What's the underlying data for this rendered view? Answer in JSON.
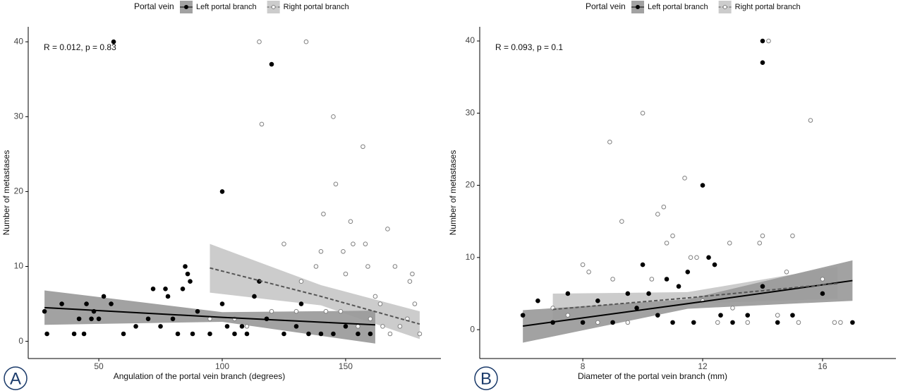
{
  "chart_data": [
    {
      "type": "scatter",
      "panel": "A",
      "legend_title": "Portal vein",
      "annotation": "R = 0.012, p = 0.83",
      "x_label": "Angulation of the portal vein branch (degrees)",
      "y_label": "Number of metastases",
      "xlim": [
        21.4,
        188.6
      ],
      "ylim": [
        -2.3,
        42
      ],
      "xticks": [
        50,
        100,
        150
      ],
      "yticks": [
        0,
        10,
        20,
        30,
        40
      ],
      "series": [
        {
          "name": "Left portal branch",
          "color": "#000000",
          "marker": "filled",
          "x": [
            28,
            29,
            35,
            40,
            42,
            44,
            45,
            47,
            48,
            50,
            52,
            55,
            56,
            60,
            65,
            70,
            72,
            75,
            77,
            78,
            80,
            82,
            84,
            85,
            86,
            87,
            88,
            90,
            95,
            100,
            100,
            102,
            105,
            108,
            110,
            113,
            115,
            120,
            118,
            125,
            130,
            132,
            135,
            140,
            145,
            150,
            155,
            160
          ],
          "values": [
            4,
            1,
            5,
            1,
            3,
            1,
            5,
            3,
            4,
            3,
            6,
            5,
            40,
            1,
            2,
            3,
            7,
            2,
            7,
            6,
            3,
            1,
            7,
            10,
            9,
            8,
            1,
            4,
            1,
            20,
            5,
            2,
            1,
            2,
            1,
            6,
            8,
            37,
            3,
            1,
            2,
            5,
            1,
            1,
            1,
            2,
            1,
            1
          ],
          "fit": {
            "x": [
              28,
              100,
              162
            ],
            "values": [
              4.5,
              3.2,
              2.2
            ],
            "lower": [
              2.2,
              2.6,
              -0.3
            ],
            "upper": [
              6.8,
              3.9,
              4.1
            ]
          }
        },
        {
          "name": "Right portal branch",
          "color": "#808080",
          "marker": "open",
          "x": [
            95,
            105,
            110,
            115,
            116,
            120,
            125,
            130,
            132,
            134,
            138,
            140,
            141,
            142,
            145,
            146,
            148,
            149,
            150,
            152,
            153,
            155,
            157,
            158,
            159,
            160,
            162,
            164,
            165,
            167,
            170,
            172,
            175,
            176,
            177,
            178,
            180,
            168
          ],
          "values": [
            3,
            3,
            2,
            40,
            29,
            4,
            13,
            4,
            8,
            40,
            10,
            12,
            17,
            4,
            30,
            21,
            4,
            12,
            9,
            16,
            13,
            2,
            26,
            13,
            10,
            3,
            6,
            5,
            2,
            15,
            10,
            2,
            3,
            8,
            9,
            5,
            1,
            1
          ],
          "fit": {
            "x": [
              95,
              140,
              180
            ],
            "values": [
              9.8,
              6.0,
              2.3
            ],
            "lower": [
              6.5,
              4.8,
              0.3
            ],
            "upper": [
              13,
              7.5,
              4
            ]
          }
        }
      ]
    },
    {
      "type": "scatter",
      "panel": "B",
      "legend_title": "Portal vein",
      "annotation": "R = 0.093, p = 0.1",
      "x_label": "Diameter of the portal vein branch (mm)",
      "y_label": "Number of metastases",
      "xlim": [
        4.56,
        18.45
      ],
      "ylim": [
        -4,
        41.96
      ],
      "xticks": [
        8,
        12,
        16
      ],
      "yticks": [
        0,
        10,
        20,
        30,
        40
      ],
      "series": [
        {
          "name": "Left portal branch",
          "color": "#000000",
          "marker": "filled",
          "x": [
            6,
            6.5,
            7,
            7.5,
            8,
            8.5,
            9,
            9.5,
            9.8,
            10,
            10.2,
            10.5,
            10.8,
            11,
            11.2,
            11.5,
            11.7,
            12,
            12.2,
            12.4,
            12.6,
            13,
            13.5,
            14,
            14,
            14,
            14.5,
            15,
            16,
            17
          ],
          "values": [
            2,
            4,
            1,
            5,
            1,
            4,
            1,
            5,
            3,
            9,
            5,
            2,
            7,
            1,
            6,
            8,
            1,
            20,
            10,
            9,
            2,
            1,
            2,
            40,
            37,
            6,
            1,
            2,
            5,
            1
          ],
          "fit": {
            "x": [
              6,
              11.5,
              17
            ],
            "values": [
              0.5,
              3.6,
              6.8
            ],
            "lower": [
              -1.8,
              2.9,
              4
            ],
            "upper": [
              2.7,
              4.2,
              9.6
            ]
          }
        },
        {
          "name": "Right portal branch",
          "color": "#808080",
          "marker": "open",
          "x": [
            7,
            7.5,
            8,
            8.2,
            8.5,
            8.9,
            9,
            9.3,
            9.5,
            10,
            10.3,
            10.5,
            10.7,
            10.8,
            11,
            11.4,
            11.6,
            11.8,
            12,
            12.5,
            12.9,
            13,
            13.5,
            13.9,
            14,
            14.2,
            14.5,
            14.8,
            15,
            15.2,
            15.6,
            16,
            16.4,
            16.6
          ],
          "values": [
            3,
            2,
            9,
            8,
            1,
            26,
            7,
            15,
            1,
            30,
            7,
            16,
            17,
            12,
            13,
            21,
            10,
            10,
            4,
            1,
            12,
            3,
            1,
            12,
            13,
            40,
            2,
            8,
            13,
            1,
            29,
            7,
            1,
            1
          ],
          "fit": {
            "x": [
              7,
              11.5,
              16.5
            ],
            "values": [
              2.8,
              4.4,
              6.4
            ],
            "lower": [
              0.8,
              3.6,
              4.3
            ],
            "upper": [
              5,
              5.2,
              8.7
            ]
          }
        }
      ]
    }
  ]
}
